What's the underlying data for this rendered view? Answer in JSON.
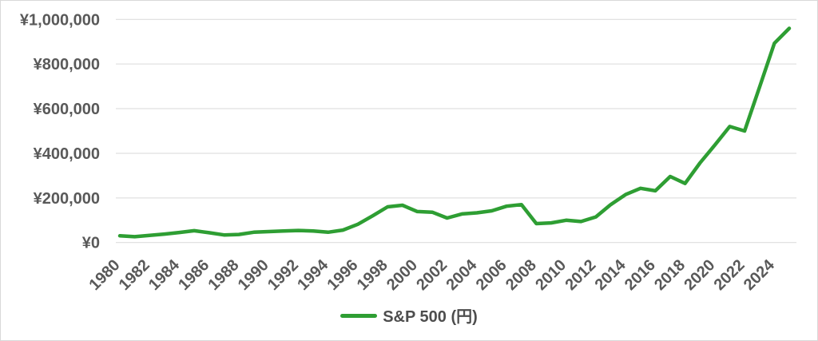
{
  "chart_data": {
    "type": "line",
    "title": "",
    "xlabel": "",
    "ylabel": "",
    "grid": "horizontal",
    "legend_position": "bottom",
    "xlim": [
      1980,
      2025
    ],
    "ylim": [
      0,
      1000000
    ],
    "y_ticks": [
      {
        "value": 0,
        "label": "¥0"
      },
      {
        "value": 200000,
        "label": "¥200,000"
      },
      {
        "value": 400000,
        "label": "¥400,000"
      },
      {
        "value": 600000,
        "label": "¥600,000"
      },
      {
        "value": 800000,
        "label": "¥800,000"
      },
      {
        "value": 1000000,
        "label": "¥1,000,000"
      }
    ],
    "x_tick_labels": [
      "1980",
      "1982",
      "1984",
      "1986",
      "1988",
      "1990",
      "1992",
      "1994",
      "1996",
      "1998",
      "2000",
      "2002",
      "2004",
      "2006",
      "2008",
      "2010",
      "2012",
      "2014",
      "2016",
      "2018",
      "2020",
      "2022",
      "2024"
    ],
    "x_tick_years": [
      1980,
      1982,
      1984,
      1986,
      1988,
      1990,
      1992,
      1994,
      1996,
      1998,
      2000,
      2002,
      2004,
      2006,
      2008,
      2010,
      2012,
      2014,
      2016,
      2018,
      2020,
      2022,
      2024
    ],
    "series": [
      {
        "name": "S&P 500 (円)",
        "color": "#2e9e33",
        "x": [
          1980,
          1981,
          1982,
          1983,
          1984,
          1985,
          1986,
          1987,
          1988,
          1989,
          1990,
          1991,
          1992,
          1993,
          1994,
          1995,
          1996,
          1997,
          1998,
          1999,
          2000,
          2001,
          2002,
          2003,
          2004,
          2005,
          2006,
          2007,
          2008,
          2009,
          2010,
          2011,
          2012,
          2013,
          2014,
          2015,
          2016,
          2017,
          2018,
          2019,
          2020,
          2021,
          2022,
          2023,
          2024,
          2025
        ],
        "values": [
          30000,
          26000,
          32000,
          38000,
          45000,
          53000,
          44000,
          34000,
          36000,
          46000,
          49000,
          52000,
          54000,
          52000,
          46000,
          56000,
          82000,
          120000,
          160000,
          167000,
          139000,
          136000,
          110000,
          128000,
          133000,
          142000,
          163000,
          170000,
          85000,
          88000,
          100000,
          94000,
          115000,
          170000,
          215000,
          243000,
          232000,
          296000,
          265000,
          357000,
          437000,
          520000,
          500000,
          696000,
          893000,
          960000
        ]
      }
    ]
  },
  "legend": {
    "label": "S&P 500 (円)"
  },
  "colors": {
    "line": "#2e9e33",
    "axis_label": "#595959",
    "gridline": "#d9d9d9",
    "legend_text": "#4d4d4d",
    "background": "#ffffff",
    "border": "#d9d9d9"
  }
}
